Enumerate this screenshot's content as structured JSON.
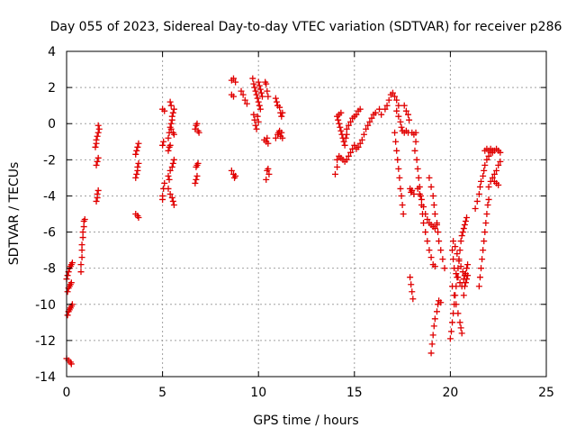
{
  "chart_data": {
    "type": "scatter",
    "title": "Day 055 of 2023, Sidereal Day-to-day VTEC variation (SDTVAR) for receiver p286",
    "xlabel": "GPS time / hours",
    "ylabel": "SDTVAR / TECUs",
    "xlim": [
      0,
      25
    ],
    "ylim": [
      -14,
      4
    ],
    "xticks": [
      0,
      5,
      10,
      15,
      20,
      25
    ],
    "yticks": [
      -14,
      -12,
      -10,
      -8,
      -6,
      -4,
      -2,
      0,
      2,
      4
    ],
    "grid": true,
    "marker": "+",
    "color": "#e00000",
    "points": [
      [
        0.0,
        -8.6
      ],
      [
        0.05,
        -8.4
      ],
      [
        0.1,
        -8.2
      ],
      [
        0.15,
        -8.0
      ],
      [
        0.2,
        -7.9
      ],
      [
        0.25,
        -7.8
      ],
      [
        0.3,
        -7.7
      ],
      [
        0.05,
        -9.3
      ],
      [
        0.1,
        -9.1
      ],
      [
        0.15,
        -9.0
      ],
      [
        0.2,
        -8.9
      ],
      [
        0.25,
        -8.8
      ],
      [
        0.05,
        -10.6
      ],
      [
        0.1,
        -10.4
      ],
      [
        0.15,
        -10.3
      ],
      [
        0.2,
        -10.2
      ],
      [
        0.25,
        -10.1
      ],
      [
        0.3,
        -10.0
      ],
      [
        0.0,
        -13.0
      ],
      [
        0.1,
        -13.1
      ],
      [
        0.2,
        -13.2
      ],
      [
        0.25,
        -13.3
      ],
      [
        0.75,
        -8.2
      ],
      [
        0.75,
        -7.8
      ],
      [
        0.8,
        -7.4
      ],
      [
        0.8,
        -7.0
      ],
      [
        0.8,
        -6.7
      ],
      [
        0.85,
        -6.3
      ],
      [
        0.85,
        -6.0
      ],
      [
        0.9,
        -5.7
      ],
      [
        0.9,
        -5.4
      ],
      [
        0.95,
        -5.3
      ],
      [
        1.55,
        -4.3
      ],
      [
        1.6,
        -4.1
      ],
      [
        1.6,
        -3.9
      ],
      [
        1.65,
        -3.7
      ],
      [
        1.55,
        -2.3
      ],
      [
        1.6,
        -2.1
      ],
      [
        1.65,
        -1.9
      ],
      [
        1.5,
        -1.3
      ],
      [
        1.55,
        -1.1
      ],
      [
        1.55,
        -0.9
      ],
      [
        1.6,
        -0.7
      ],
      [
        1.65,
        -0.5
      ],
      [
        1.7,
        -0.3
      ],
      [
        1.65,
        -0.1
      ],
      [
        3.6,
        -5.0
      ],
      [
        3.7,
        -5.1
      ],
      [
        3.75,
        -5.2
      ],
      [
        3.6,
        -3.0
      ],
      [
        3.65,
        -2.8
      ],
      [
        3.7,
        -2.6
      ],
      [
        3.7,
        -2.4
      ],
      [
        3.75,
        -2.2
      ],
      [
        3.6,
        -1.7
      ],
      [
        3.65,
        -1.5
      ],
      [
        3.7,
        -1.3
      ],
      [
        3.75,
        -1.1
      ],
      [
        5.0,
        -4.2
      ],
      [
        5.0,
        -4.0
      ],
      [
        5.05,
        -3.6
      ],
      [
        5.1,
        -3.3
      ],
      [
        5.0,
        -1.2
      ],
      [
        5.05,
        -1.0
      ],
      [
        5.0,
        0.8
      ],
      [
        5.1,
        0.7
      ],
      [
        5.3,
        -2.9
      ],
      [
        5.35,
        -3.1
      ],
      [
        5.4,
        -2.6
      ],
      [
        5.5,
        -2.4
      ],
      [
        5.55,
        -2.2
      ],
      [
        5.6,
        -2.0
      ],
      [
        5.3,
        -3.6
      ],
      [
        5.4,
        -3.9
      ],
      [
        5.5,
        -4.1
      ],
      [
        5.55,
        -4.3
      ],
      [
        5.6,
        -4.5
      ],
      [
        5.3,
        -1.5
      ],
      [
        5.35,
        -1.3
      ],
      [
        5.4,
        -1.2
      ],
      [
        5.3,
        -0.8
      ],
      [
        5.35,
        -0.5
      ],
      [
        5.4,
        -0.2
      ],
      [
        5.45,
        0.0
      ],
      [
        5.5,
        0.2
      ],
      [
        5.5,
        0.4
      ],
      [
        5.55,
        0.6
      ],
      [
        5.6,
        0.8
      ],
      [
        5.45,
        1.0
      ],
      [
        5.4,
        1.2
      ],
      [
        5.45,
        -0.3
      ],
      [
        5.55,
        -0.5
      ],
      [
        5.6,
        -0.6
      ],
      [
        6.7,
        -0.3
      ],
      [
        6.75,
        -0.1
      ],
      [
        6.8,
        0.0
      ],
      [
        6.85,
        -0.4
      ],
      [
        6.9,
        -0.5
      ],
      [
        6.7,
        -3.3
      ],
      [
        6.75,
        -3.1
      ],
      [
        6.8,
        -2.9
      ],
      [
        6.75,
        -2.4
      ],
      [
        6.8,
        -2.3
      ],
      [
        6.85,
        -2.2
      ],
      [
        8.6,
        2.4
      ],
      [
        8.7,
        2.5
      ],
      [
        8.8,
        2.3
      ],
      [
        8.6,
        1.6
      ],
      [
        8.7,
        1.5
      ],
      [
        8.6,
        -2.6
      ],
      [
        8.7,
        -2.8
      ],
      [
        8.75,
        -3.0
      ],
      [
        8.8,
        -2.9
      ],
      [
        9.1,
        1.8
      ],
      [
        9.2,
        1.6
      ],
      [
        9.3,
        1.3
      ],
      [
        9.4,
        1.1
      ],
      [
        9.7,
        2.5
      ],
      [
        9.75,
        2.2
      ],
      [
        9.8,
        2.0
      ],
      [
        9.85,
        1.8
      ],
      [
        9.9,
        1.6
      ],
      [
        9.95,
        1.4
      ],
      [
        10.0,
        1.2
      ],
      [
        10.05,
        1.0
      ],
      [
        10.1,
        0.8
      ],
      [
        9.75,
        0.5
      ],
      [
        9.8,
        0.2
      ],
      [
        9.85,
        -0.1
      ],
      [
        9.9,
        -0.3
      ],
      [
        9.95,
        0.4
      ],
      [
        10.0,
        0.1
      ],
      [
        10.0,
        2.3
      ],
      [
        10.05,
        2.1
      ],
      [
        10.1,
        1.9
      ],
      [
        10.15,
        1.7
      ],
      [
        10.2,
        1.5
      ],
      [
        10.3,
        -0.9
      ],
      [
        10.4,
        -1.0
      ],
      [
        10.45,
        -0.8
      ],
      [
        10.5,
        -1.1
      ],
      [
        10.35,
        2.3
      ],
      [
        10.4,
        2.2
      ],
      [
        10.45,
        1.8
      ],
      [
        10.5,
        1.5
      ],
      [
        10.45,
        -2.6
      ],
      [
        10.5,
        -2.5
      ],
      [
        10.55,
        -2.8
      ],
      [
        10.4,
        -3.1
      ],
      [
        10.9,
        1.4
      ],
      [
        10.95,
        1.2
      ],
      [
        11.0,
        1.0
      ],
      [
        11.1,
        0.9
      ],
      [
        11.15,
        0.6
      ],
      [
        11.2,
        0.4
      ],
      [
        11.25,
        0.6
      ],
      [
        10.9,
        -0.8
      ],
      [
        11.0,
        -0.6
      ],
      [
        11.05,
        -0.5
      ],
      [
        11.1,
        -0.4
      ],
      [
        11.15,
        -0.7
      ],
      [
        11.2,
        -0.5
      ],
      [
        11.25,
        -0.8
      ],
      [
        14.0,
        -2.8
      ],
      [
        14.1,
        -2.4
      ],
      [
        14.1,
        -2.0
      ],
      [
        14.2,
        -1.8
      ],
      [
        14.3,
        -1.9
      ],
      [
        14.4,
        -2.0
      ],
      [
        14.5,
        -2.1
      ],
      [
        14.6,
        -2.0
      ],
      [
        14.7,
        -1.8
      ],
      [
        14.8,
        -1.6
      ],
      [
        14.9,
        -1.4
      ],
      [
        15.0,
        -1.2
      ],
      [
        15.1,
        -1.4
      ],
      [
        15.2,
        -1.3
      ],
      [
        15.3,
        -1.1
      ],
      [
        14.1,
        0.4
      ],
      [
        14.15,
        0.2
      ],
      [
        14.2,
        0.0
      ],
      [
        14.25,
        -0.2
      ],
      [
        14.3,
        -0.4
      ],
      [
        14.35,
        -0.6
      ],
      [
        14.4,
        -0.8
      ],
      [
        14.45,
        -1.0
      ],
      [
        14.5,
        -1.2
      ],
      [
        14.55,
        -0.8
      ],
      [
        14.6,
        -0.6
      ],
      [
        14.6,
        -0.3
      ],
      [
        14.7,
        -0.1
      ],
      [
        14.8,
        0.1
      ],
      [
        14.9,
        0.3
      ],
      [
        15.0,
        0.4
      ],
      [
        15.1,
        0.5
      ],
      [
        15.2,
        0.7
      ],
      [
        15.3,
        0.8
      ],
      [
        14.3,
        0.6
      ],
      [
        14.2,
        0.5
      ],
      [
        15.6,
        -0.3
      ],
      [
        15.7,
        -0.1
      ],
      [
        15.8,
        0.1
      ],
      [
        15.9,
        0.3
      ],
      [
        16.0,
        0.5
      ],
      [
        16.1,
        0.6
      ],
      [
        16.3,
        0.8
      ],
      [
        16.4,
        0.5
      ],
      [
        15.5,
        -0.6
      ],
      [
        15.4,
        -0.9
      ],
      [
        16.6,
        0.8
      ],
      [
        16.7,
        1.0
      ],
      [
        16.8,
        1.3
      ],
      [
        16.9,
        1.6
      ],
      [
        17.0,
        1.7
      ],
      [
        17.1,
        1.5
      ],
      [
        17.2,
        1.3
      ],
      [
        17.3,
        1.0
      ],
      [
        17.1,
        -0.5
      ],
      [
        17.15,
        -1.0
      ],
      [
        17.2,
        -1.5
      ],
      [
        17.25,
        -2.0
      ],
      [
        17.3,
        -2.5
      ],
      [
        17.35,
        -3.0
      ],
      [
        17.4,
        -3.6
      ],
      [
        17.45,
        -4.0
      ],
      [
        17.5,
        -4.5
      ],
      [
        17.55,
        -5.0
      ],
      [
        17.2,
        0.7
      ],
      [
        17.3,
        0.4
      ],
      [
        17.4,
        0.1
      ],
      [
        17.45,
        -0.2
      ],
      [
        17.5,
        -0.4
      ],
      [
        17.6,
        -0.5
      ],
      [
        17.7,
        -0.4
      ],
      [
        17.8,
        -0.5
      ],
      [
        18.0,
        -0.5
      ],
      [
        18.1,
        -0.6
      ],
      [
        18.2,
        -0.5
      ],
      [
        17.6,
        1.0
      ],
      [
        17.7,
        0.7
      ],
      [
        17.8,
        0.5
      ],
      [
        17.85,
        0.2
      ],
      [
        17.9,
        -3.6
      ],
      [
        17.95,
        -3.8
      ],
      [
        18.0,
        -3.7
      ],
      [
        18.1,
        -3.9
      ],
      [
        17.9,
        -8.5
      ],
      [
        17.95,
        -8.9
      ],
      [
        18.0,
        -9.3
      ],
      [
        18.05,
        -9.7
      ],
      [
        18.2,
        -1.0
      ],
      [
        18.15,
        -1.5
      ],
      [
        18.25,
        -2.0
      ],
      [
        18.3,
        -2.5
      ],
      [
        18.35,
        -3.0
      ],
      [
        18.4,
        -3.5
      ],
      [
        18.45,
        -4.0
      ],
      [
        18.5,
        -4.5
      ],
      [
        18.55,
        -5.0
      ],
      [
        18.6,
        -5.5
      ],
      [
        18.7,
        -6.0
      ],
      [
        18.8,
        -6.5
      ],
      [
        18.9,
        -7.0
      ],
      [
        19.0,
        -7.4
      ],
      [
        19.1,
        -7.8
      ],
      [
        19.2,
        -7.9
      ],
      [
        18.3,
        -3.6
      ],
      [
        18.4,
        -3.9
      ],
      [
        18.5,
        -4.2
      ],
      [
        18.6,
        -4.6
      ],
      [
        18.7,
        -5.0
      ],
      [
        18.8,
        -5.3
      ],
      [
        18.9,
        -5.5
      ],
      [
        19.0,
        -5.6
      ],
      [
        19.1,
        -5.7
      ],
      [
        19.2,
        -5.8
      ],
      [
        19.3,
        -5.6
      ],
      [
        18.9,
        -3.0
      ],
      [
        19.0,
        -3.5
      ],
      [
        19.1,
        -4.0
      ],
      [
        19.15,
        -4.5
      ],
      [
        19.2,
        -5.0
      ],
      [
        19.3,
        -5.5
      ],
      [
        19.35,
        -6.0
      ],
      [
        19.4,
        -6.5
      ],
      [
        19.5,
        -7.0
      ],
      [
        19.6,
        -7.5
      ],
      [
        19.7,
        -8.0
      ],
      [
        19.0,
        -12.7
      ],
      [
        19.05,
        -12.2
      ],
      [
        19.1,
        -11.7
      ],
      [
        19.15,
        -11.2
      ],
      [
        19.2,
        -10.8
      ],
      [
        19.3,
        -10.4
      ],
      [
        19.35,
        -10.0
      ],
      [
        19.4,
        -9.8
      ],
      [
        19.5,
        -9.9
      ],
      [
        20.0,
        -11.9
      ],
      [
        20.05,
        -11.5
      ],
      [
        20.1,
        -11.0
      ],
      [
        20.15,
        -10.5
      ],
      [
        20.2,
        -10.0
      ],
      [
        20.25,
        -9.5
      ],
      [
        20.3,
        -9.0
      ],
      [
        20.35,
        -8.5
      ],
      [
        20.4,
        -8.0
      ],
      [
        20.45,
        -7.5
      ],
      [
        20.5,
        -7.0
      ],
      [
        20.55,
        -6.5
      ],
      [
        20.6,
        -6.2
      ],
      [
        20.65,
        -6.0
      ],
      [
        20.7,
        -5.8
      ],
      [
        20.75,
        -5.6
      ],
      [
        20.8,
        -5.4
      ],
      [
        20.85,
        -5.2
      ],
      [
        20.1,
        -9.0
      ],
      [
        20.2,
        -9.5
      ],
      [
        20.3,
        -10.0
      ],
      [
        20.4,
        -10.5
      ],
      [
        20.5,
        -11.0
      ],
      [
        20.55,
        -11.3
      ],
      [
        20.6,
        -11.6
      ],
      [
        20.1,
        -7.0
      ],
      [
        20.15,
        -7.5
      ],
      [
        20.2,
        -8.0
      ],
      [
        20.3,
        -8.3
      ],
      [
        20.4,
        -8.5
      ],
      [
        20.5,
        -8.8
      ],
      [
        20.6,
        -9.0
      ],
      [
        20.7,
        -8.6
      ],
      [
        20.8,
        -8.3
      ],
      [
        20.85,
        -8.0
      ],
      [
        20.9,
        -7.8
      ],
      [
        20.15,
        -6.5
      ],
      [
        20.25,
        -6.8
      ],
      [
        20.35,
        -7.2
      ],
      [
        20.45,
        -7.6
      ],
      [
        20.55,
        -7.9
      ],
      [
        20.65,
        -8.2
      ],
      [
        20.75,
        -8.4
      ],
      [
        20.7,
        -9.5
      ],
      [
        20.75,
        -9.0
      ],
      [
        20.8,
        -8.8
      ],
      [
        20.85,
        -8.6
      ],
      [
        20.9,
        -8.4
      ],
      [
        21.3,
        -4.7
      ],
      [
        21.4,
        -4.3
      ],
      [
        21.5,
        -3.9
      ],
      [
        21.55,
        -3.5
      ],
      [
        21.6,
        -3.2
      ],
      [
        21.7,
        -2.9
      ],
      [
        21.75,
        -2.6
      ],
      [
        21.8,
        -2.3
      ],
      [
        21.9,
        -2.0
      ],
      [
        22.0,
        -1.8
      ],
      [
        22.1,
        -1.6
      ],
      [
        22.2,
        -1.5
      ],
      [
        21.5,
        -9.0
      ],
      [
        21.55,
        -8.5
      ],
      [
        21.6,
        -8.0
      ],
      [
        21.65,
        -7.5
      ],
      [
        21.7,
        -7.0
      ],
      [
        21.75,
        -6.5
      ],
      [
        21.8,
        -6.0
      ],
      [
        21.85,
        -5.5
      ],
      [
        21.9,
        -5.0
      ],
      [
        21.95,
        -4.5
      ],
      [
        22.0,
        -4.2
      ],
      [
        21.8,
        -1.5
      ],
      [
        21.9,
        -1.4
      ],
      [
        22.0,
        -1.5
      ],
      [
        22.1,
        -1.4
      ],
      [
        22.2,
        -1.6
      ],
      [
        22.3,
        -1.5
      ],
      [
        22.4,
        -1.4
      ],
      [
        22.5,
        -1.5
      ],
      [
        22.6,
        -1.6
      ],
      [
        22.0,
        -3.5
      ],
      [
        22.1,
        -3.2
      ],
      [
        22.2,
        -3.0
      ],
      [
        22.3,
        -2.8
      ],
      [
        22.4,
        -2.6
      ],
      [
        22.5,
        -2.3
      ],
      [
        22.6,
        -2.1
      ],
      [
        22.3,
        -3.2
      ],
      [
        22.4,
        -3.3
      ],
      [
        22.5,
        -3.4
      ]
    ]
  }
}
